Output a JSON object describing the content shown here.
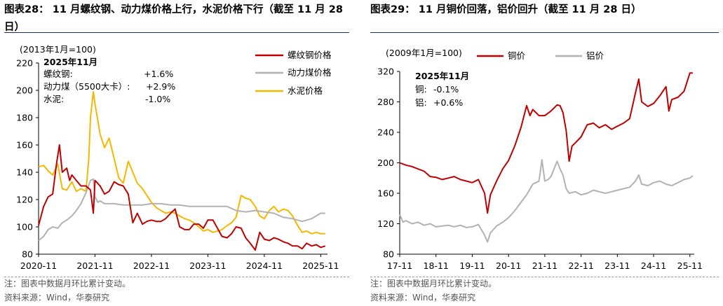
{
  "titles": {
    "left": "图表28： 11 月螺纹钢、动力煤价格上行，水泥价格下行（截至 11 月 28 日）",
    "right": "图表29： 11 月铜价回落，铝价回升（截至 11 月 28 日）"
  },
  "notes": {
    "left_1": "注：图表中数据月环比累计变动。",
    "left_2": "资料来源：Wind，华泰研究",
    "right_1": "注：图表中数据月环比累计变动。",
    "right_2": "资料来源：Wind，华泰研究"
  },
  "colors": {
    "red": "#c00000",
    "gray": "#b2b2b2",
    "yellow": "#f5b800",
    "axis": "#000000"
  },
  "chart_data": [
    {
      "type": "line",
      "base_note": "(2013年1月=100)",
      "ylim": [
        80,
        220
      ],
      "yticks": [
        "80",
        "100",
        "120",
        "140",
        "160",
        "180",
        "200",
        "220"
      ],
      "xticks": [
        "2020-11",
        "2021-11",
        "2022-11",
        "2023-11",
        "2024-11",
        "2025-11"
      ],
      "annotation": {
        "title": "2025年11月",
        "rows": [
          {
            "label": "螺纹钢:",
            "value": "+1.6%"
          },
          {
            "label": "动力煤（5500大卡）:",
            "value": "+2.9%"
          },
          {
            "label": "水泥:",
            "value": "-1.0%"
          }
        ]
      },
      "series": [
        {
          "name": "螺纹钢价格",
          "color": "#c00000",
          "x": [
            2020.83,
            2020.92,
            2021.0,
            2021.08,
            2021.15,
            2021.2,
            2021.25,
            2021.33,
            2021.38,
            2021.42,
            2021.5,
            2021.58,
            2021.67,
            2021.75,
            2021.8,
            2021.83,
            2021.92,
            2022.0,
            2022.08,
            2022.17,
            2022.25,
            2022.33,
            2022.42,
            2022.5,
            2022.58,
            2022.67,
            2022.75,
            2022.83,
            2022.92,
            2023.0,
            2023.08,
            2023.17,
            2023.25,
            2023.33,
            2023.42,
            2023.5,
            2023.58,
            2023.67,
            2023.75,
            2023.83,
            2023.92,
            2024.0,
            2024.08,
            2024.17,
            2024.25,
            2024.33,
            2024.42,
            2024.5,
            2024.58,
            2024.67,
            2024.75,
            2024.83,
            2024.92,
            2025.0,
            2025.08,
            2025.17,
            2025.25,
            2025.33,
            2025.42,
            2025.5,
            2025.58,
            2025.67,
            2025.75,
            2025.83,
            2025.91
          ],
          "values": [
            101,
            115,
            122,
            124,
            147,
            160,
            140,
            143,
            134,
            138,
            134,
            130,
            130,
            127,
            110,
            134,
            130,
            124,
            126,
            133,
            131,
            130,
            124,
            103,
            110,
            102,
            104,
            105,
            104,
            104,
            106,
            110,
            113,
            100,
            98,
            98,
            102,
            102,
            99,
            105,
            105,
            99,
            93,
            92,
            95,
            100,
            99,
            92,
            88,
            83,
            96,
            91,
            90,
            92,
            91,
            89,
            88,
            86,
            86,
            84,
            88,
            86,
            87,
            85,
            86
          ]
        },
        {
          "name": "动力煤价格",
          "color": "#b2b2b2",
          "x": [
            2020.83,
            2020.92,
            2021.0,
            2021.08,
            2021.17,
            2021.25,
            2021.33,
            2021.42,
            2021.5,
            2021.58,
            2021.67,
            2021.75,
            2021.8,
            2021.83,
            2021.88,
            2021.92,
            2022.0,
            2022.17,
            2022.33,
            2022.5,
            2022.67,
            2022.83,
            2023.0,
            2023.17,
            2023.33,
            2023.5,
            2023.67,
            2023.83,
            2024.0,
            2024.17,
            2024.33,
            2024.5,
            2024.67,
            2024.83,
            2025.0,
            2025.17,
            2025.33,
            2025.5,
            2025.67,
            2025.75,
            2025.83,
            2025.91
          ],
          "values": [
            90,
            93,
            98,
            100,
            99,
            103,
            105,
            108,
            112,
            117,
            125,
            134,
            135,
            122,
            118,
            119,
            117,
            117,
            116,
            116,
            116,
            117,
            117,
            116,
            116,
            115,
            115,
            115,
            115,
            115,
            112,
            111,
            112,
            111,
            110,
            107,
            106,
            104,
            106,
            108,
            110,
            110
          ]
        },
        {
          "name": "水泥价格",
          "color": "#f5b800",
          "x": [
            2020.83,
            2020.92,
            2021.0,
            2021.08,
            2021.17,
            2021.25,
            2021.33,
            2021.42,
            2021.5,
            2021.58,
            2021.67,
            2021.72,
            2021.75,
            2021.8,
            2021.83,
            2021.88,
            2021.92,
            2022.0,
            2022.08,
            2022.17,
            2022.25,
            2022.33,
            2022.42,
            2022.5,
            2022.58,
            2022.67,
            2022.75,
            2022.83,
            2022.92,
            2023.0,
            2023.08,
            2023.17,
            2023.25,
            2023.33,
            2023.42,
            2023.5,
            2023.58,
            2023.67,
            2023.75,
            2023.83,
            2023.92,
            2024.0,
            2024.08,
            2024.17,
            2024.25,
            2024.33,
            2024.42,
            2024.5,
            2024.58,
            2024.67,
            2024.75,
            2024.83,
            2024.92,
            2025.0,
            2025.08,
            2025.17,
            2025.25,
            2025.33,
            2025.42,
            2025.5,
            2025.58,
            2025.67,
            2025.75,
            2025.83,
            2025.91
          ],
          "values": [
            144,
            145,
            141,
            138,
            146,
            128,
            127,
            133,
            126,
            128,
            126,
            150,
            180,
            199,
            190,
            178,
            168,
            158,
            165,
            150,
            136,
            132,
            148,
            140,
            132,
            128,
            123,
            118,
            114,
            112,
            110,
            111,
            110,
            108,
            106,
            105,
            103,
            100,
            97,
            98,
            96,
            97,
            98,
            101,
            103,
            107,
            123,
            121,
            120,
            115,
            108,
            106,
            112,
            115,
            111,
            113,
            112,
            108,
            101,
            96,
            97,
            95,
            96,
            95,
            95
          ]
        }
      ]
    },
    {
      "type": "line",
      "base_note": "(2009年1月=100)",
      "ylim": [
        80,
        320
      ],
      "yticks": [
        "80",
        "120",
        "160",
        "200",
        "240",
        "280",
        "320"
      ],
      "xticks": [
        "17-11",
        "18-11",
        "19-11",
        "20-11",
        "21-11",
        "22-11",
        "23-11",
        "24-11",
        "25-11"
      ],
      "annotation": {
        "title": "2025年11月",
        "rows": [
          {
            "label": "铜:",
            "value": "-0.1%"
          },
          {
            "label": "铝:",
            "value": "+0.6%"
          }
        ]
      },
      "series": [
        {
          "name": "铜价",
          "color": "#c00000",
          "x": [
            2017.83,
            2018.0,
            2018.17,
            2018.33,
            2018.5,
            2018.67,
            2018.83,
            2019.0,
            2019.17,
            2019.33,
            2019.5,
            2019.67,
            2019.83,
            2020.0,
            2020.17,
            2020.25,
            2020.33,
            2020.5,
            2020.67,
            2020.83,
            2021.0,
            2021.17,
            2021.33,
            2021.42,
            2021.5,
            2021.67,
            2021.83,
            2022.0,
            2022.17,
            2022.25,
            2022.33,
            2022.42,
            2022.5,
            2022.58,
            2022.67,
            2022.83,
            2023.0,
            2023.17,
            2023.33,
            2023.5,
            2023.67,
            2023.83,
            2024.0,
            2024.17,
            2024.33,
            2024.42,
            2024.5,
            2024.67,
            2024.83,
            2025.0,
            2025.17,
            2025.25,
            2025.33,
            2025.5,
            2025.67,
            2025.83,
            2025.91
          ],
          "values": [
            200,
            197,
            195,
            192,
            189,
            182,
            181,
            178,
            180,
            182,
            178,
            176,
            174,
            178,
            160,
            134,
            158,
            176,
            192,
            203,
            222,
            246,
            275,
            262,
            270,
            262,
            262,
            268,
            276,
            275,
            266,
            242,
            202,
            222,
            226,
            234,
            250,
            252,
            246,
            250,
            244,
            248,
            252,
            258,
            292,
            310,
            280,
            274,
            278,
            288,
            300,
            268,
            283,
            286,
            294,
            318,
            318
          ]
        },
        {
          "name": "铝价",
          "color": "#b2b2b2",
          "x": [
            2017.83,
            2017.92,
            2018.0,
            2018.17,
            2018.33,
            2018.5,
            2018.67,
            2018.83,
            2019.0,
            2019.17,
            2019.33,
            2019.5,
            2019.67,
            2019.83,
            2020.0,
            2020.17,
            2020.25,
            2020.33,
            2020.5,
            2020.67,
            2020.83,
            2021.0,
            2021.17,
            2021.33,
            2021.5,
            2021.67,
            2021.75,
            2021.83,
            2021.92,
            2022.0,
            2022.17,
            2022.25,
            2022.33,
            2022.42,
            2022.5,
            2022.67,
            2022.83,
            2023.0,
            2023.17,
            2023.33,
            2023.5,
            2023.67,
            2023.83,
            2024.0,
            2024.17,
            2024.33,
            2024.42,
            2024.5,
            2024.67,
            2024.83,
            2025.0,
            2025.17,
            2025.33,
            2025.5,
            2025.67,
            2025.83,
            2025.91
          ],
          "values": [
            132,
            122,
            124,
            120,
            122,
            118,
            120,
            116,
            117,
            118,
            116,
            118,
            115,
            116,
            119,
            105,
            96,
            108,
            117,
            122,
            128,
            137,
            148,
            158,
            172,
            176,
            204,
            176,
            178,
            182,
            202,
            192,
            184,
            166,
            160,
            162,
            158,
            160,
            164,
            162,
            160,
            162,
            164,
            166,
            168,
            176,
            184,
            172,
            170,
            174,
            176,
            172,
            170,
            174,
            178,
            180,
            183
          ]
        }
      ]
    }
  ]
}
